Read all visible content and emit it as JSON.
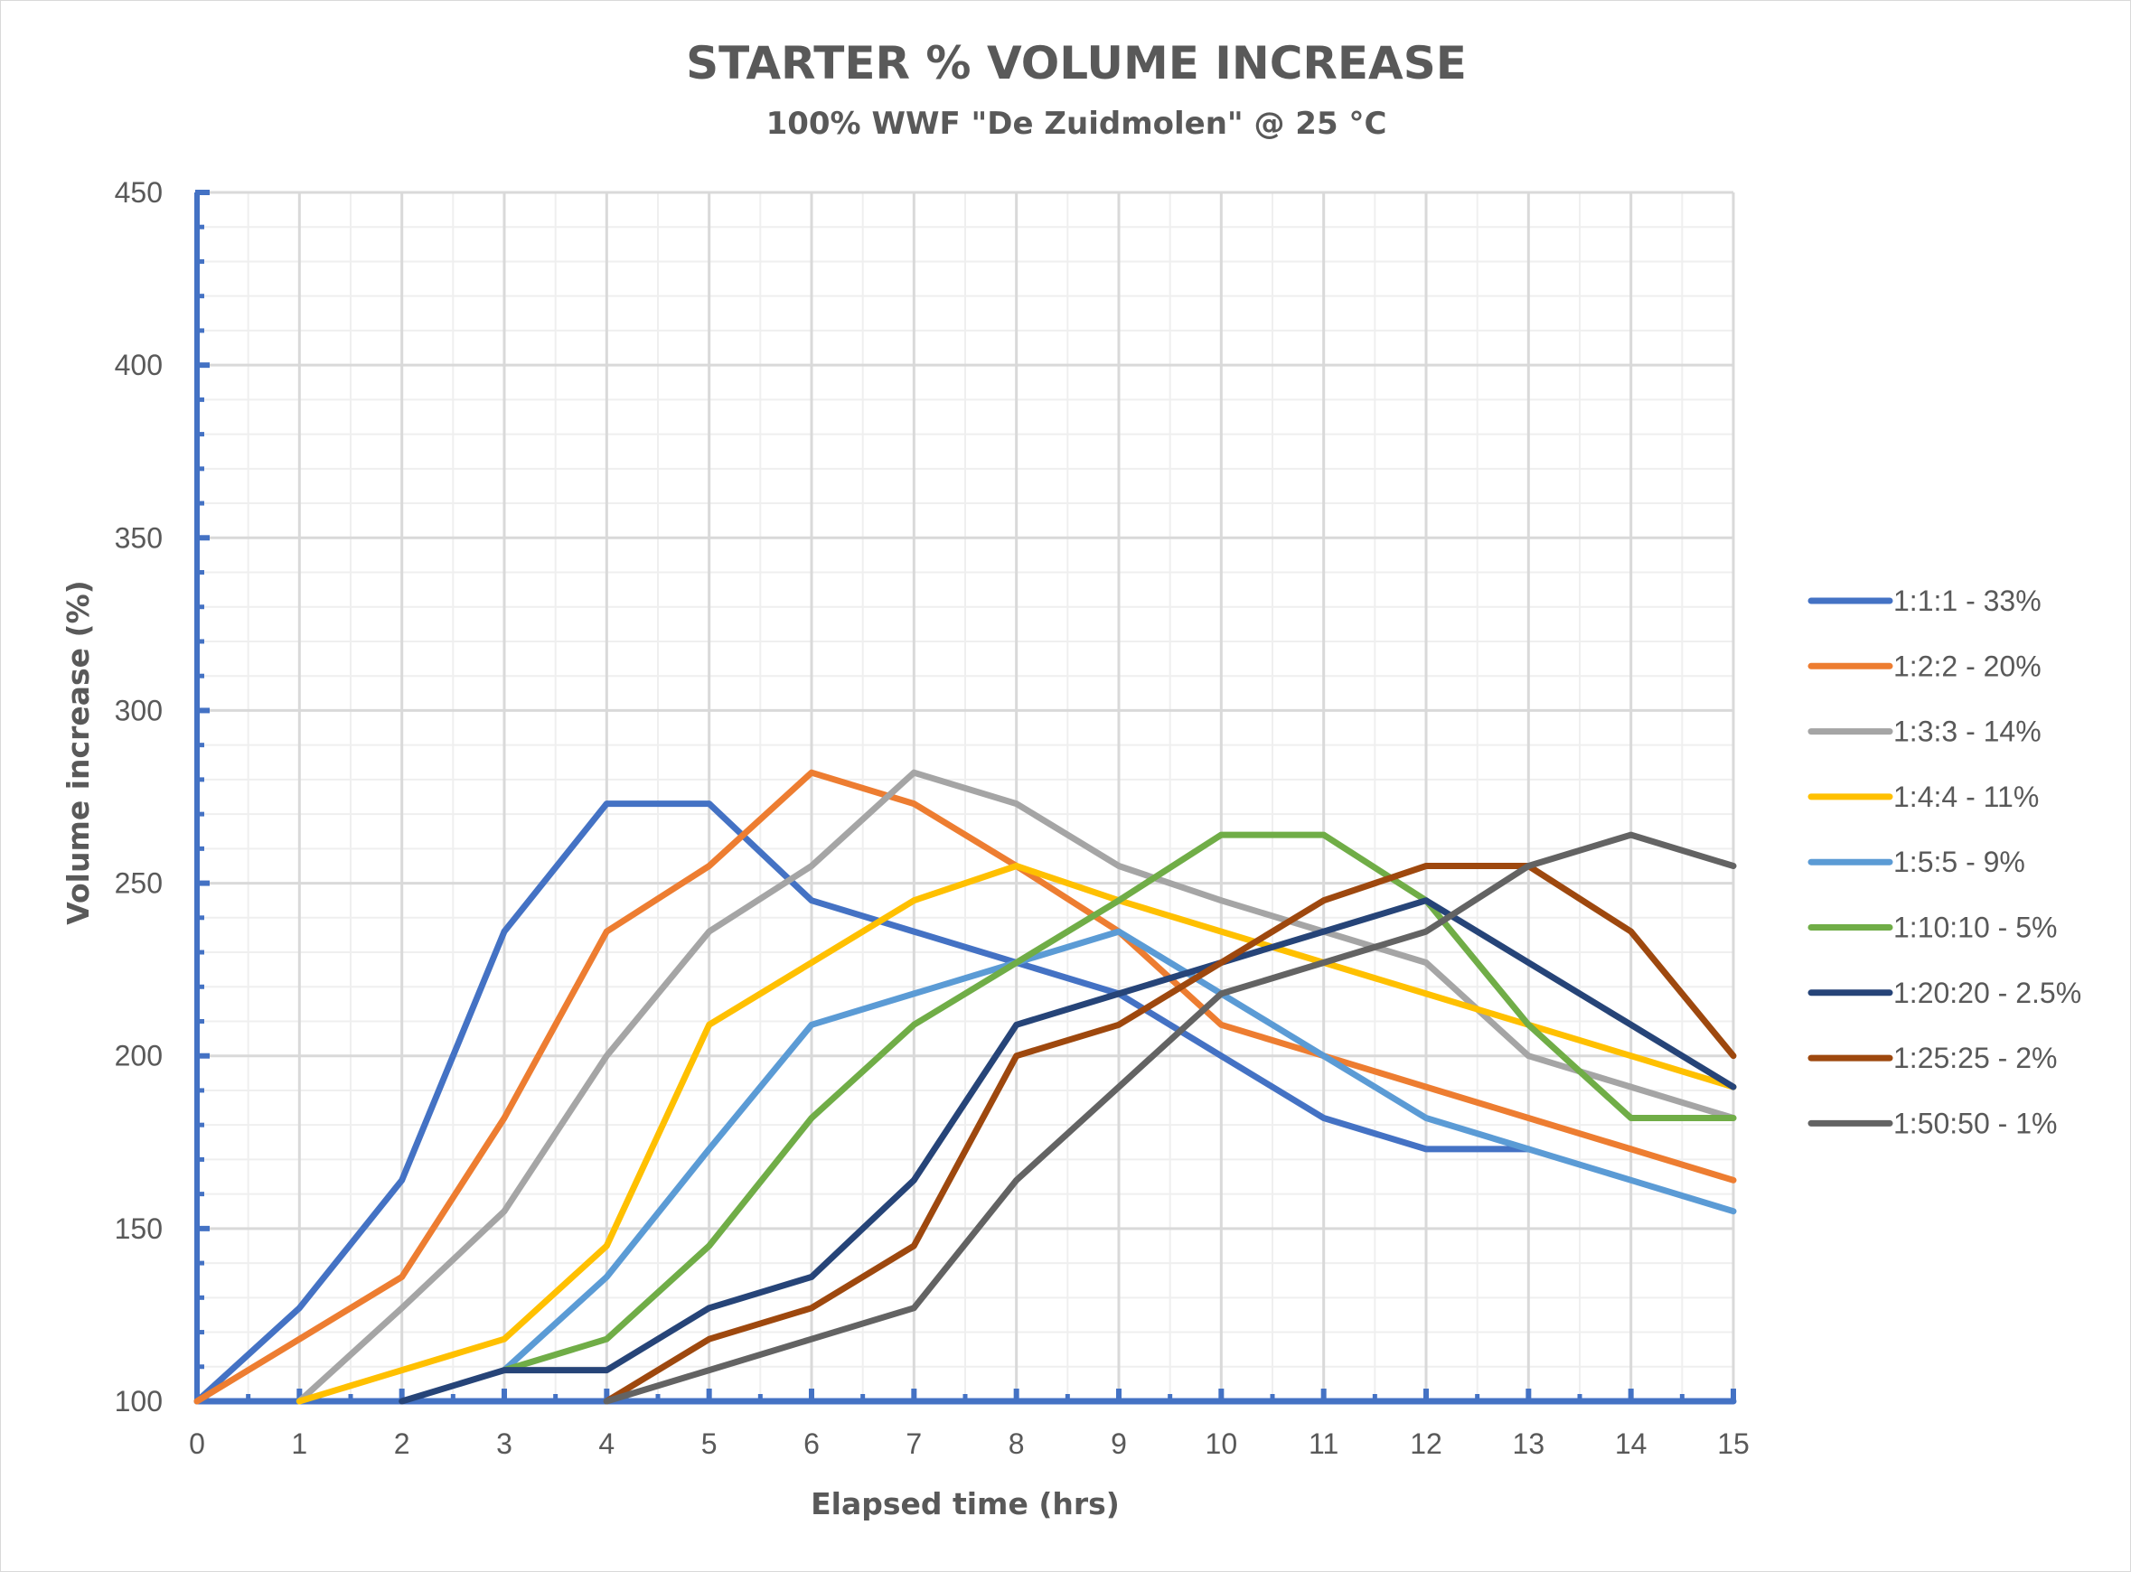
{
  "chart_data": {
    "type": "line",
    "title": "STARTER % VOLUME INCREASE",
    "subtitle": "100% WWF \"De Zuidmolen\" @ 25 °C",
    "xlabel": "Elapsed time (hrs)",
    "ylabel": "Volume increase (%)",
    "xlim": [
      0,
      15
    ],
    "ylim": [
      100,
      450
    ],
    "x_ticks": [
      0,
      1,
      2,
      3,
      4,
      5,
      6,
      7,
      8,
      9,
      10,
      11,
      12,
      13,
      14,
      15
    ],
    "y_ticks": [
      100,
      150,
      200,
      250,
      300,
      350,
      400,
      450
    ],
    "x_tick_labels": [
      "0",
      "1",
      "2",
      "3",
      "4",
      "5",
      "6",
      "7",
      "8",
      "9",
      "10",
      "11",
      "12",
      "13",
      "14",
      "15"
    ],
    "y_tick_labels": [
      "100",
      "150",
      "200",
      "250",
      "300",
      "350",
      "400",
      "450"
    ],
    "grid": true,
    "minor_grid": true,
    "legend": "right",
    "x": [
      0,
      1,
      2,
      3,
      4,
      5,
      6,
      7,
      8,
      9,
      10,
      11,
      12,
      13,
      14,
      15
    ],
    "series": [
      {
        "name": "1:1:1 - 33%",
        "color": "#4472C4",
        "values": [
          100,
          127,
          164,
          236,
          273,
          273,
          245,
          236,
          227,
          218,
          200,
          182,
          173,
          173,
          null,
          null
        ]
      },
      {
        "name": "1:2:2 - 20%",
        "color": "#ED7D31",
        "values": [
          100,
          118,
          136,
          182,
          236,
          255,
          282,
          273,
          255,
          236,
          209,
          200,
          191,
          182,
          173,
          164
        ]
      },
      {
        "name": "1:3:3 - 14%",
        "color": "#A5A5A5",
        "values": [
          null,
          100,
          127,
          155,
          200,
          236,
          255,
          282,
          273,
          255,
          245,
          236,
          227,
          200,
          191,
          182
        ]
      },
      {
        "name": "1:4:4 - 11%",
        "color": "#FFC000",
        "values": [
          null,
          100,
          109,
          118,
          145,
          209,
          227,
          245,
          255,
          245,
          236,
          227,
          218,
          209,
          200,
          191
        ]
      },
      {
        "name": "1:5:5 - 9%",
        "color": "#5B9BD5",
        "values": [
          null,
          null,
          null,
          109,
          136,
          173,
          209,
          218,
          227,
          236,
          218,
          200,
          182,
          173,
          164,
          155
        ]
      },
      {
        "name": "1:10:10 - 5%",
        "color": "#70AD47",
        "values": [
          null,
          null,
          null,
          109,
          118,
          145,
          182,
          209,
          227,
          245,
          264,
          264,
          245,
          209,
          182,
          182
        ]
      },
      {
        "name": "1:20:20 - 2.5%",
        "color": "#264478",
        "values": [
          null,
          null,
          100,
          109,
          109,
          127,
          136,
          164,
          209,
          218,
          227,
          236,
          245,
          227,
          209,
          191
        ]
      },
      {
        "name": "1:25:25 - 2%",
        "color": "#9E480E",
        "values": [
          null,
          null,
          null,
          null,
          100,
          118,
          127,
          145,
          200,
          209,
          227,
          245,
          255,
          255,
          236,
          200
        ]
      },
      {
        "name": "1:50:50 - 1%",
        "color": "#636363",
        "values": [
          null,
          null,
          null,
          null,
          100,
          109,
          118,
          127,
          164,
          191,
          218,
          227,
          236,
          255,
          264,
          255
        ]
      }
    ],
    "baseline": {
      "values": [
        100,
        100,
        100,
        100,
        100,
        100,
        100,
        100,
        100,
        100,
        100,
        100,
        100,
        100,
        100,
        100
      ]
    },
    "axis_color": "#4472C4"
  }
}
